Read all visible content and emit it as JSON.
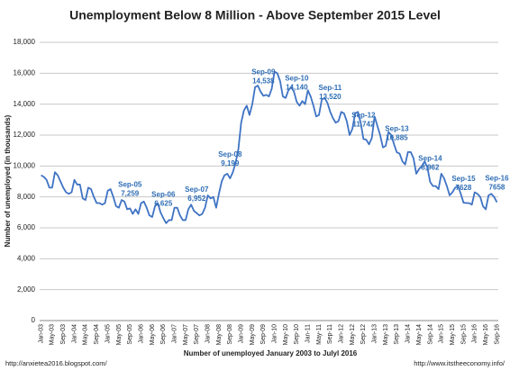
{
  "chart_data": {
    "type": "line",
    "title": "Unemployment Below 8 Million - Above September 2015 Level",
    "y_label": "Number of unemployed (in thousands)",
    "x_label": "Number of unemployed January 2003 to Julyl 2016",
    "source_left": "http://anxietea2016.blogspot.com/",
    "source_right": "http://www.itstheeconomy.info/",
    "grid": true,
    "ylim": [
      0,
      18000
    ],
    "yticks": [
      0,
      {
        "value": 2000,
        "label": "2,000"
      },
      {
        "value": 4000,
        "label": "4,000"
      },
      {
        "value": 6000,
        "label": "6,000"
      },
      {
        "value": 8000,
        "label": "8,000"
      },
      {
        "value": 10000,
        "label": "10,000"
      },
      {
        "value": 12000,
        "label": "12,000"
      },
      {
        "value": 14000,
        "label": "14,000"
      },
      {
        "value": 16000,
        "label": "16,000"
      },
      {
        "value": 18000,
        "label": "18,000"
      }
    ],
    "categories": [
      "Jan-03",
      null,
      null,
      null,
      "May-03",
      null,
      null,
      null,
      "Sep-03",
      null,
      null,
      null,
      "Jan-04",
      null,
      null,
      null,
      "May-04",
      null,
      null,
      null,
      "Sep-04",
      null,
      null,
      null,
      "Jan-05",
      null,
      null,
      null,
      "May-05",
      null,
      null,
      null,
      "Sep-05",
      null,
      null,
      null,
      "Jan-06",
      null,
      null,
      null,
      "May-06",
      null,
      null,
      null,
      "Sep-06",
      null,
      null,
      null,
      "Jan-07",
      null,
      null,
      null,
      "May-07",
      null,
      null,
      null,
      "Sep-07",
      null,
      null,
      null,
      "Jan-08",
      null,
      null,
      null,
      "May-08",
      null,
      null,
      null,
      "Sep-08",
      null,
      null,
      null,
      "Jan-09",
      null,
      null,
      null,
      "May-09",
      null,
      null,
      null,
      "Sep-09",
      null,
      null,
      null,
      "Jan-10",
      null,
      null,
      null,
      "May-10",
      null,
      null,
      null,
      "Sep-10",
      null,
      null,
      null,
      "Jan-11",
      null,
      null,
      null,
      "May-11",
      null,
      null,
      null,
      "Sep-11",
      null,
      null,
      null,
      "Jan-12",
      null,
      null,
      null,
      "May-12",
      null,
      null,
      null,
      "Sep-12",
      null,
      null,
      null,
      "Jan-13",
      null,
      null,
      null,
      "May-13",
      null,
      null,
      null,
      "Sep-13",
      null,
      null,
      null,
      "Jan-14",
      null,
      null,
      null,
      "May-14",
      null,
      null,
      null,
      "Sep-14",
      null,
      null,
      null,
      "Jan-15",
      null,
      null,
      null,
      "May-15",
      null,
      null,
      null,
      "Sep-15",
      null,
      null,
      null,
      "Jan-16",
      null,
      null,
      null,
      "May-16",
      null,
      null,
      null,
      "Sep-16"
    ],
    "series": [
      {
        "name": "Unemployed",
        "color": "#3f73c4",
        "values": [
          9400,
          9300,
          9100,
          8600,
          8600,
          9600,
          9400,
          9000,
          8600,
          8300,
          8200,
          8300,
          9100,
          8800,
          8800,
          7900,
          7800,
          8600,
          8500,
          8000,
          7600,
          7600,
          7500,
          7600,
          8400,
          8500,
          8000,
          7400,
          7300,
          7800,
          7700,
          7200,
          7259,
          6900,
          7200,
          6900,
          7600,
          7700,
          7300,
          6800,
          6700,
          7400,
          7600,
          7000,
          6625,
          6300,
          6500,
          6500,
          7300,
          7300,
          6800,
          6500,
          6500,
          7200,
          7500,
          7100,
          6952,
          6800,
          6900,
          7300,
          8100,
          7900,
          8000,
          7300,
          8200,
          9000,
          9400,
          9500,
          9199,
          9600,
          10200,
          11100,
          12800,
          13600,
          13900,
          13300,
          14000,
          15100,
          15200,
          14800,
          14538,
          14600,
          14500,
          15000,
          16100,
          16000,
          15500,
          14500,
          14400,
          14900,
          15100,
          14800,
          14140,
          13900,
          14200,
          14000,
          14900,
          14500,
          13900,
          13200,
          13300,
          14300,
          14400,
          14100,
          13520,
          13100,
          12800,
          12900,
          13500,
          13400,
          12900,
          12000,
          12400,
          13400,
          13500,
          12800,
          11742,
          11700,
          11400,
          11800,
          13200,
          12600,
          12000,
          11200,
          11300,
          12200,
          12000,
          11400,
          10885,
          10800,
          10300,
          10100,
          10900,
          10900,
          10500,
          9500,
          9800,
          10000,
          10300,
          9900,
          8962,
          8700,
          8700,
          8500,
          9500,
          9200,
          8700,
          8100,
          8300,
          8600,
          8700,
          8200,
          7628,
          7600,
          7600,
          7500,
          8300,
          8200,
          8000,
          7400,
          7200,
          8100,
          8200,
          8000,
          7658
        ],
        "value_labels": [
          null,
          null,
          null,
          null,
          null,
          null,
          null,
          null,
          null,
          null,
          null,
          null,
          null,
          null,
          null,
          null,
          null,
          null,
          null,
          null,
          null,
          null,
          null,
          null,
          null,
          null,
          null,
          null,
          null,
          null,
          null,
          null,
          "7,259",
          null,
          null,
          null,
          null,
          null,
          null,
          null,
          null,
          null,
          null,
          null,
          "6,625",
          null,
          null,
          null,
          null,
          null,
          null,
          null,
          null,
          null,
          null,
          null,
          "6,952",
          null,
          null,
          null,
          null,
          null,
          null,
          null,
          null,
          null,
          null,
          null,
          "9,199",
          null,
          null,
          null,
          null,
          null,
          null,
          null,
          null,
          null,
          null,
          null,
          "14,538",
          null,
          null,
          null,
          null,
          null,
          null,
          null,
          null,
          null,
          null,
          null,
          "14,140",
          null,
          null,
          null,
          null,
          null,
          null,
          null,
          null,
          null,
          null,
          null,
          "13,520",
          null,
          null,
          null,
          null,
          null,
          null,
          null,
          null,
          null,
          null,
          null,
          "11,742",
          null,
          null,
          null,
          null,
          null,
          null,
          null,
          null,
          null,
          null,
          null,
          "10,885",
          null,
          null,
          null,
          null,
          null,
          null,
          null,
          null,
          null,
          null,
          null,
          "8,962",
          null,
          null,
          null,
          null,
          null,
          null,
          null,
          null,
          null,
          null,
          null,
          "7628",
          null,
          null,
          null,
          null,
          null,
          null,
          null,
          null,
          null,
          null,
          null,
          "7658"
        ]
      }
    ]
  }
}
